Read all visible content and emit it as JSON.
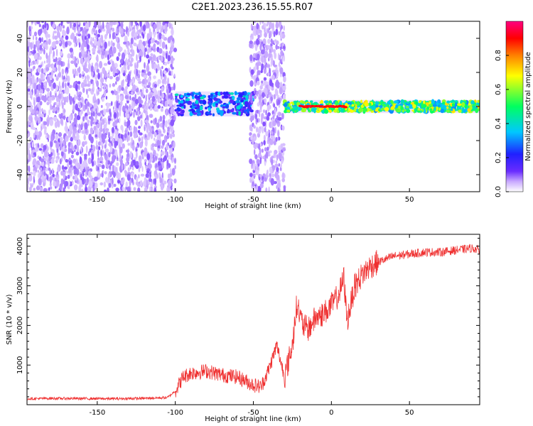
{
  "title": "C2E1.2023.236.15.55.R07",
  "colors": {
    "snr_line": "#ef3030",
    "frame": "#000000",
    "background": "#ffffff"
  },
  "chart_data": [
    {
      "type": "heatmap",
      "xlabel": "Height of straight line (km)",
      "ylabel": "Frequency (Hz)",
      "xlim": [
        -195,
        95
      ],
      "ylim": [
        -50,
        50
      ],
      "xticks": [
        -150,
        -100,
        -50,
        0,
        50
      ],
      "yticks": [
        -40,
        -20,
        0,
        20,
        40
      ],
      "colorbar": {
        "label": "Normalized spectral amplitude",
        "range": [
          0,
          1
        ],
        "ticks": [
          0.0,
          0.2,
          0.4,
          0.6,
          0.8
        ],
        "tick_labels": [
          "0.0",
          "0.2",
          "0.4",
          "0.6",
          "0.8"
        ],
        "colormap_stops": [
          "#ffffff",
          "#c8a8ff",
          "#6a2cff",
          "#2020ff",
          "#00c8ff",
          "#00ff60",
          "#ffff00",
          "#ff8000",
          "#ff0000",
          "#ff0080"
        ]
      },
      "regions": [
        {
          "x": [
            -195,
            -100
          ],
          "freq_span": [
            -50,
            50
          ],
          "amplitude": 0.1,
          "kind": "noise"
        },
        {
          "x": [
            -100,
            -50
          ],
          "freq_span": [
            -5,
            8
          ],
          "amplitude": 0.35,
          "kind": "signal"
        },
        {
          "x": [
            -52,
            -30
          ],
          "freq_span": [
            -50,
            50
          ],
          "amplitude": 0.1,
          "kind": "noise"
        },
        {
          "x": [
            -30,
            95
          ],
          "freq_span": [
            -3,
            3
          ],
          "amplitude": 0.55,
          "kind": "signal"
        },
        {
          "x": [
            -20,
            10
          ],
          "freq_span": [
            -1,
            1
          ],
          "amplitude": 0.95,
          "kind": "peak"
        }
      ]
    },
    {
      "type": "line",
      "xlabel": "Height of straight line (km)",
      "ylabel": "SNR (10 * v/v)",
      "xlim": [
        -195,
        95
      ],
      "ylim": [
        0,
        4300
      ],
      "xticks": [
        -150,
        -100,
        -50,
        0,
        50
      ],
      "yticks": [
        1000,
        2000,
        3000,
        4000
      ],
      "series": [
        {
          "x": [
            -195,
            -180,
            -160,
            -140,
            -120,
            -105,
            -100,
            -95,
            -90,
            -80,
            -70,
            -60,
            -50,
            -45,
            -40,
            -35,
            -30,
            -25,
            -22,
            -20,
            -18,
            -15,
            -10,
            -5,
            0,
            5,
            8,
            10,
            15,
            20,
            25,
            30,
            40,
            50,
            60,
            70,
            80,
            90,
            95
          ],
          "values": [
            150,
            160,
            155,
            150,
            160,
            180,
            350,
            700,
            800,
            850,
            750,
            700,
            500,
            450,
            900,
            1500,
            700,
            1500,
            2600,
            2200,
            2000,
            1900,
            2200,
            2300,
            2500,
            2800,
            3200,
            2100,
            3000,
            3300,
            3500,
            3600,
            3750,
            3800,
            3850,
            3850,
            3900,
            3950,
            3900
          ]
        }
      ]
    }
  ]
}
